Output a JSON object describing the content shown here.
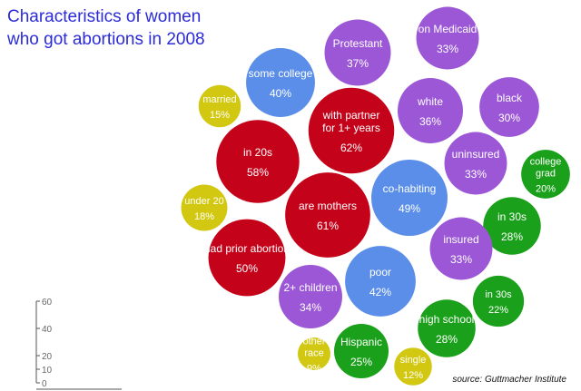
{
  "chart_data": {
    "type": "bubble",
    "title_lines": [
      "Characteristics of women",
      "who got abortions in 2008"
    ],
    "source": "source: Guttmacher Institute",
    "legend": {
      "ticks": [
        "60",
        "40",
        "20",
        "10",
        "0"
      ]
    },
    "colors": {
      "red": "#c4031a",
      "purple": "#9b57d6",
      "blue": "#5a8ee8",
      "green": "#1aa01a",
      "yellow": "#d2c812"
    },
    "bubbles": [
      {
        "lines": [
          "on Medicaid"
        ],
        "value_label": "33%",
        "value": 33,
        "color": "purple"
      },
      {
        "lines": [
          "Protestant"
        ],
        "value_label": "37%",
        "value": 37,
        "color": "purple"
      },
      {
        "lines": [
          "some college"
        ],
        "value_label": "40%",
        "value": 40,
        "color": "blue"
      },
      {
        "lines": [
          "married"
        ],
        "value_label": "15%",
        "value": 15,
        "color": "yellow"
      },
      {
        "lines": [
          "with partner",
          "for 1+ years"
        ],
        "value_label": "62%",
        "value": 62,
        "color": "red"
      },
      {
        "lines": [
          "white"
        ],
        "value_label": "36%",
        "value": 36,
        "color": "purple"
      },
      {
        "lines": [
          "black"
        ],
        "value_label": "30%",
        "value": 30,
        "color": "purple"
      },
      {
        "lines": [
          "in 20s"
        ],
        "value_label": "58%",
        "value": 58,
        "color": "red"
      },
      {
        "lines": [
          "uninsured"
        ],
        "value_label": "33%",
        "value": 33,
        "color": "purple"
      },
      {
        "lines": [
          "college",
          "grad"
        ],
        "value_label": "20%",
        "value": 20,
        "color": "green"
      },
      {
        "lines": [
          "under 20"
        ],
        "value_label": "18%",
        "value": 18,
        "color": "yellow"
      },
      {
        "lines": [
          "co-habiting"
        ],
        "value_label": "49%",
        "value": 49,
        "color": "blue"
      },
      {
        "lines": [
          "are mothers"
        ],
        "value_label": "61%",
        "value": 61,
        "color": "red"
      },
      {
        "lines": [
          "in 30s"
        ],
        "value_label": "28%",
        "value": 28,
        "color": "green"
      },
      {
        "lines": [
          "insured"
        ],
        "value_label": "33%",
        "value": 33,
        "color": "purple"
      },
      {
        "lines": [
          "had prior abortion"
        ],
        "value_label": "50%",
        "value": 50,
        "color": "red"
      },
      {
        "lines": [
          "poor"
        ],
        "value_label": "42%",
        "value": 42,
        "color": "blue"
      },
      {
        "lines": [
          "2+ children"
        ],
        "value_label": "34%",
        "value": 34,
        "color": "purple"
      },
      {
        "lines": [
          "in 30s"
        ],
        "value_label": "22%",
        "value": 22,
        "color": "green"
      },
      {
        "lines": [
          "high school"
        ],
        "value_label": "28%",
        "value": 28,
        "color": "green"
      },
      {
        "lines": [
          "other",
          "race"
        ],
        "value_label": "9%",
        "value": 9,
        "color": "yellow"
      },
      {
        "lines": [
          "Hispanic"
        ],
        "value_label": "25%",
        "value": 25,
        "color": "green"
      },
      {
        "lines": [
          "single"
        ],
        "value_label": "12%",
        "value": 12,
        "color": "yellow"
      }
    ]
  }
}
